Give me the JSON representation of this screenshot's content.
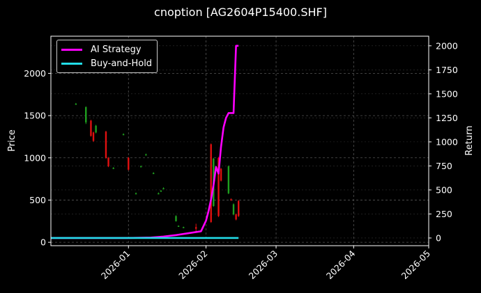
{
  "chart_data": {
    "type": "candlestick+line",
    "title": "cnoption [AG2604P15400.SHF]",
    "xlabel": "",
    "ylabel_left": "Price",
    "ylabel_right": "Return",
    "x_ticks": [
      "2026-01",
      "2026-02",
      "2026-03",
      "2026-04",
      "2026-05"
    ],
    "y_left_ticks": [
      0,
      500,
      1000,
      1500,
      2000
    ],
    "y_right_ticks": [
      0,
      250,
      500,
      750,
      1000,
      1250,
      1500,
      1750,
      2000
    ],
    "ylim_left": [
      -40,
      2440
    ],
    "ylim_right": [
      -80,
      2100
    ],
    "xlim": [
      "2025-12-01",
      "2026-05-01"
    ],
    "grid": true,
    "legend_position": "upper left",
    "legend": [
      "AI Strategy",
      "Buy-and-Hold"
    ],
    "colors": {
      "ai_strategy": "#ff00ff",
      "buy_and_hold": "#22dde8",
      "up": "#1fa01f",
      "down": "#e01010",
      "grid": "#555555"
    },
    "candles": [
      {
        "date": "2025-12-11",
        "open": 1640,
        "close": 1640,
        "high": 1650,
        "low": 1630
      },
      {
        "date": "2025-12-15",
        "open": 1420,
        "close": 1600,
        "high": 1610,
        "low": 1400
      },
      {
        "date": "2025-12-17",
        "open": 1440,
        "close": 1260,
        "high": 1450,
        "low": 1250
      },
      {
        "date": "2025-12-18",
        "open": 1300,
        "close": 1200,
        "high": 1310,
        "low": 1190
      },
      {
        "date": "2025-12-19",
        "open": 1300,
        "close": 1380,
        "high": 1390,
        "low": 1290
      },
      {
        "date": "2025-12-23",
        "open": 1310,
        "close": 1000,
        "high": 1320,
        "low": 990
      },
      {
        "date": "2025-12-24",
        "open": 1000,
        "close": 900,
        "high": 1010,
        "low": 890
      },
      {
        "date": "2025-12-26",
        "open": 880,
        "close": 880,
        "high": 890,
        "low": 870
      },
      {
        "date": "2025-12-30",
        "open": 1280,
        "close": 1280,
        "high": 1290,
        "low": 1270
      },
      {
        "date": "2026-01-01",
        "open": 1000,
        "close": 860,
        "high": 1010,
        "low": 850
      },
      {
        "date": "2026-01-04",
        "open": 580,
        "close": 580,
        "high": 590,
        "low": 570
      },
      {
        "date": "2026-01-06",
        "open": 900,
        "close": 900,
        "high": 910,
        "low": 890
      },
      {
        "date": "2026-01-08",
        "open": 1040,
        "close": 1040,
        "high": 1050,
        "low": 1030
      },
      {
        "date": "2026-01-11",
        "open": 820,
        "close": 820,
        "high": 830,
        "low": 810
      },
      {
        "date": "2026-01-13",
        "open": 580,
        "close": 580,
        "high": 590,
        "low": 570
      },
      {
        "date": "2026-01-14",
        "open": 610,
        "close": 610,
        "high": 620,
        "low": 600
      },
      {
        "date": "2026-01-15",
        "open": 640,
        "close": 640,
        "high": 650,
        "low": 630
      },
      {
        "date": "2026-01-20",
        "open": 250,
        "close": 310,
        "high": 320,
        "low": 245
      },
      {
        "date": "2026-01-21",
        "open": 195,
        "close": 195,
        "high": 200,
        "low": 190
      },
      {
        "date": "2026-01-23",
        "open": 180,
        "close": 180,
        "high": 185,
        "low": 175
      },
      {
        "date": "2026-01-28",
        "open": 180,
        "close": 160,
        "high": 220,
        "low": 120
      },
      {
        "date": "2026-02-03",
        "open": 1160,
        "close": 240,
        "high": 1170,
        "low": 230
      },
      {
        "date": "2026-02-04",
        "open": 430,
        "close": 990,
        "high": 1000,
        "low": 420
      },
      {
        "date": "2026-02-06",
        "open": 1000,
        "close": 310,
        "high": 1010,
        "low": 300
      },
      {
        "date": "2026-02-07",
        "open": 870,
        "close": 730,
        "high": 880,
        "low": 720
      },
      {
        "date": "2026-02-10",
        "open": 580,
        "close": 900,
        "high": 910,
        "low": 570
      },
      {
        "date": "2026-02-11",
        "open": 510,
        "close": 500,
        "high": 520,
        "low": 490
      },
      {
        "date": "2026-02-12",
        "open": 330,
        "close": 450,
        "high": 460,
        "low": 320
      },
      {
        "date": "2026-02-13",
        "open": 330,
        "close": 270,
        "high": 340,
        "low": 260
      },
      {
        "date": "2026-02-14",
        "open": 490,
        "close": 310,
        "high": 500,
        "low": 300
      }
    ],
    "series": [
      {
        "name": "AI Strategy",
        "axis": "right",
        "x": [
          "2025-12-01",
          "2026-01-01",
          "2026-01-10",
          "2026-01-15",
          "2026-01-20",
          "2026-01-25",
          "2026-01-30",
          "2026-02-01",
          "2026-02-02",
          "2026-02-03",
          "2026-02-04",
          "2026-02-05",
          "2026-02-06",
          "2026-02-07",
          "2026-02-08",
          "2026-02-09",
          "2026-02-10",
          "2026-02-11",
          "2026-02-12",
          "2026-02-13",
          "2026-02-14"
        ],
        "values": [
          0,
          0,
          5,
          15,
          30,
          50,
          70,
          180,
          280,
          400,
          550,
          740,
          670,
          950,
          1150,
          1250,
          1300,
          1300,
          1300,
          2000,
          2000
        ]
      },
      {
        "name": "Buy-and-Hold",
        "axis": "right",
        "x": [
          "2025-12-01",
          "2026-02-14"
        ],
        "values": [
          0,
          0
        ]
      }
    ]
  },
  "legend": {
    "items": [
      {
        "label": "AI Strategy"
      },
      {
        "label": "Buy-and-Hold"
      }
    ]
  }
}
